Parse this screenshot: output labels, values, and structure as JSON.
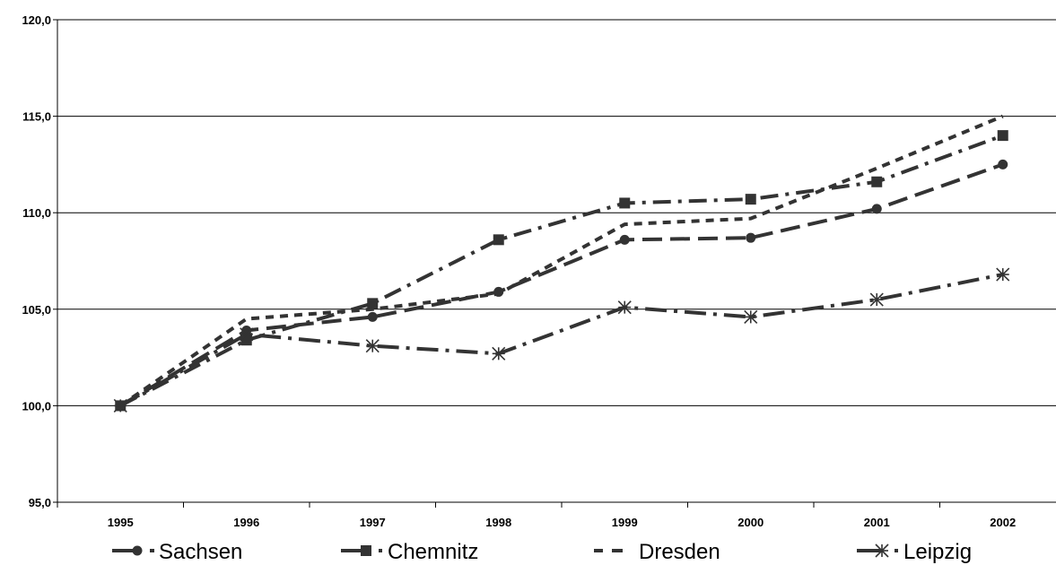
{
  "chart_data": {
    "type": "line",
    "title": "",
    "xlabel": "",
    "ylabel": "",
    "categories": [
      "1995",
      "1996",
      "1997",
      "1998",
      "1999",
      "2000",
      "2001",
      "2002"
    ],
    "ylim": [
      95.0,
      120.0
    ],
    "yticks": [
      "95,0",
      "100,0",
      "105,0",
      "110,0",
      "115,0",
      "120,0"
    ],
    "grid": true,
    "legend_position": "bottom",
    "series": [
      {
        "name": "Sachsen",
        "marker": "circle",
        "dash": "long-dash",
        "color": "#333333",
        "values": [
          100.0,
          103.9,
          104.6,
          105.9,
          108.6,
          108.7,
          110.2,
          112.5
        ]
      },
      {
        "name": "Chemnitz",
        "marker": "square",
        "dash": "dash-dot",
        "color": "#333333",
        "values": [
          100.0,
          103.4,
          105.3,
          108.6,
          110.5,
          110.7,
          111.6,
          114.0
        ]
      },
      {
        "name": "Dresden",
        "marker": "none",
        "dash": "short-dash",
        "color": "#333333",
        "values": [
          100.0,
          104.5,
          105.0,
          105.8,
          109.4,
          109.7,
          112.3,
          115.0
        ]
      },
      {
        "name": "Leipzig",
        "marker": "asterisk",
        "dash": "long-dash-dot",
        "color": "#333333",
        "values": [
          100.0,
          103.7,
          103.1,
          102.7,
          105.1,
          104.6,
          105.5,
          106.8
        ]
      }
    ]
  }
}
